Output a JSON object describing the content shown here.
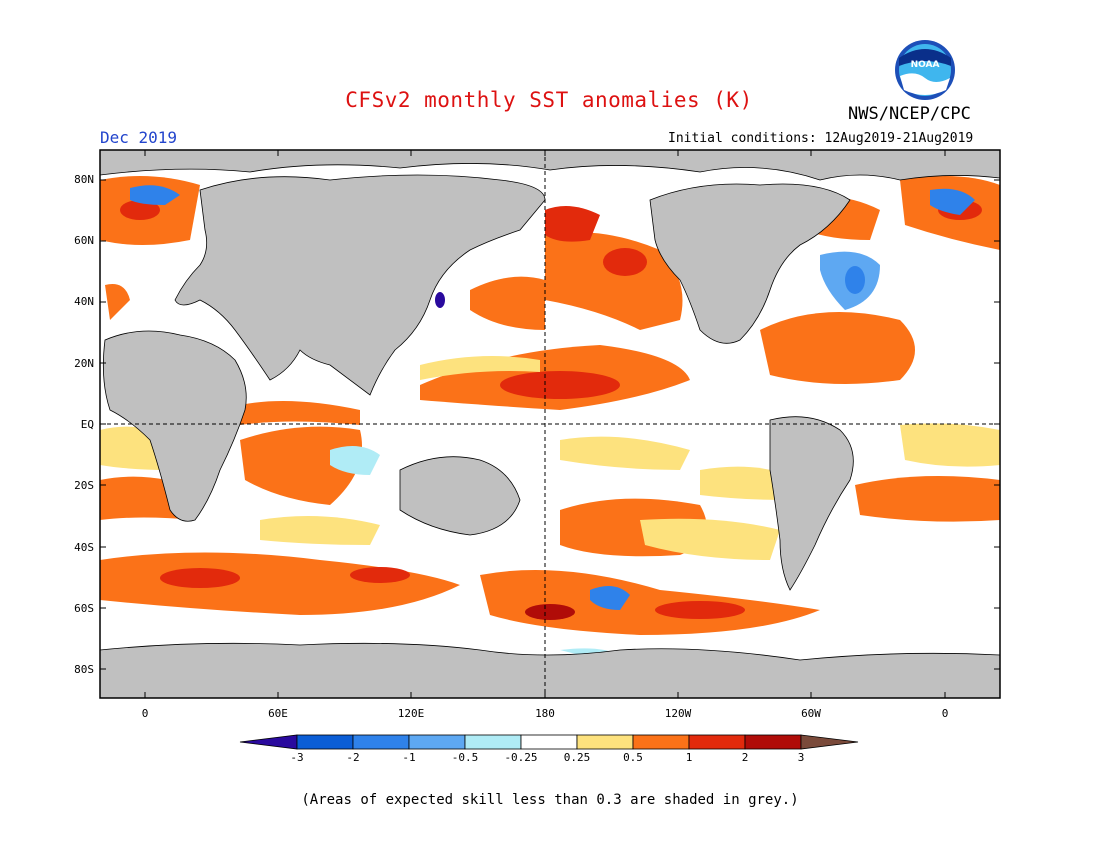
{
  "header": {
    "title": "CFSv2 monthly SST anomalies (K)",
    "organization": "NWS/NCEP/CPC",
    "logo_text": "NOAA",
    "valid_month": "Dec 2019",
    "initial_conditions": "Initial conditions: 12Aug2019-21Aug2019"
  },
  "map": {
    "lat_labels": [
      "80N",
      "60N",
      "40N",
      "20N",
      "EQ",
      "20S",
      "40S",
      "60S",
      "80S"
    ],
    "lon_labels": [
      "0",
      "60E",
      "120E",
      "180",
      "120W",
      "60W",
      "0"
    ],
    "land_color": "#c0c0c0",
    "ocean_no_anomaly_color": "#ffffff"
  },
  "colorbar": {
    "labels": [
      "-3",
      "-2",
      "-1",
      "-0.5",
      "-0.25",
      "0.25",
      "0.5",
      "1",
      "2",
      "3"
    ],
    "colors": {
      "below_-3": "#2a0a9e",
      "-3_to_-2": "#0b5ed6",
      "-2_to_-1": "#2f82ea",
      "-1_to_-0.5": "#5ea8f2",
      "-0.5_to_-0.25": "#b0ecf6",
      "-0.25_to_0.25": "#ffffff",
      "0.25_to_0.5": "#fde27e",
      "0.5_to_1": "#fb7218",
      "1_to_2": "#e22a0c",
      "2_to_3": "#b00c08",
      "above_3": "#7a4a3a"
    }
  },
  "footnote": "(Areas of expected skill less than 0.3 are shaded in grey.)"
}
